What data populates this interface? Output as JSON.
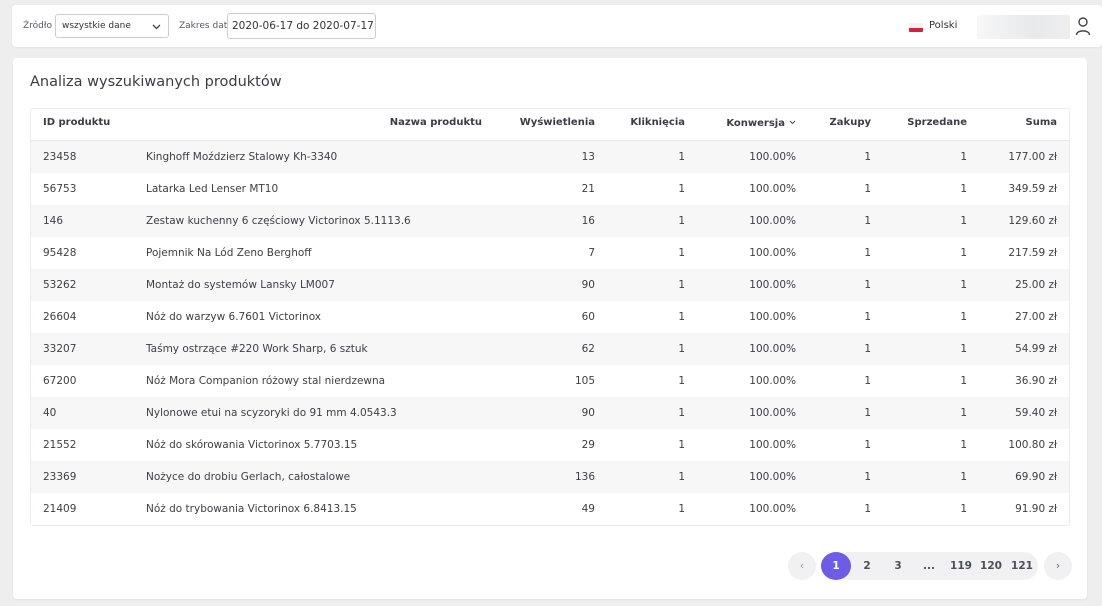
{
  "header": {
    "source_label": "Źródło",
    "source_value": "wszystkie dane",
    "date_label": "Zakres dat",
    "date_value": "2020-06-17 do 2020-07-17",
    "language": "Polski"
  },
  "main": {
    "title": "Analiza wyszukiwanych produktów",
    "columns": {
      "id": "ID produktu",
      "name": "Nazwa produktu",
      "views": "Wyświetlenia",
      "clicks": "Kliknięcia",
      "conversion": "Konwersja",
      "purchases": "Zakupy",
      "sold": "Sprzedane",
      "sum": "Suma"
    },
    "rows": [
      {
        "id": "23458",
        "name": "Kinghoff Moździerz Stalowy Kh-3340",
        "views": "13",
        "clicks": "1",
        "conversion": "100.00%",
        "purchases": "1",
        "sold": "1",
        "sum": "177.00 zł"
      },
      {
        "id": "56753",
        "name": "Latarka Led Lenser MT10",
        "views": "21",
        "clicks": "1",
        "conversion": "100.00%",
        "purchases": "1",
        "sold": "1",
        "sum": "349.59 zł"
      },
      {
        "id": "146",
        "name": "Zestaw kuchenny 6 częściowy Victorinox 5.1113.6",
        "views": "16",
        "clicks": "1",
        "conversion": "100.00%",
        "purchases": "1",
        "sold": "1",
        "sum": "129.60 zł"
      },
      {
        "id": "95428",
        "name": "Pojemnik Na Lód Zeno Berghoff",
        "views": "7",
        "clicks": "1",
        "conversion": "100.00%",
        "purchases": "1",
        "sold": "1",
        "sum": "217.59 zł"
      },
      {
        "id": "53262",
        "name": "Montaż do systemów Lansky LM007",
        "views": "90",
        "clicks": "1",
        "conversion": "100.00%",
        "purchases": "1",
        "sold": "1",
        "sum": "25.00 zł"
      },
      {
        "id": "26604",
        "name": "Nóż do warzyw 6.7601 Victorinox",
        "views": "60",
        "clicks": "1",
        "conversion": "100.00%",
        "purchases": "1",
        "sold": "1",
        "sum": "27.00 zł"
      },
      {
        "id": "33207",
        "name": "Taśmy ostrzące #220 Work Sharp, 6 sztuk",
        "views": "62",
        "clicks": "1",
        "conversion": "100.00%",
        "purchases": "1",
        "sold": "1",
        "sum": "54.99 zł"
      },
      {
        "id": "67200",
        "name": "Nóż Mora Companion różowy stal nierdzewna",
        "views": "105",
        "clicks": "1",
        "conversion": "100.00%",
        "purchases": "1",
        "sold": "1",
        "sum": "36.90 zł"
      },
      {
        "id": "40",
        "name": "Nylonowe etui na scyzoryki do 91 mm 4.0543.3",
        "views": "90",
        "clicks": "1",
        "conversion": "100.00%",
        "purchases": "1",
        "sold": "1",
        "sum": "59.40 zł"
      },
      {
        "id": "21552",
        "name": "Nóż do skórowania Victorinox 5.7703.15",
        "views": "29",
        "clicks": "1",
        "conversion": "100.00%",
        "purchases": "1",
        "sold": "1",
        "sum": "100.80 zł"
      },
      {
        "id": "23369",
        "name": "Nożyce do drobiu Gerlach, całostalowe",
        "views": "136",
        "clicks": "1",
        "conversion": "100.00%",
        "purchases": "1",
        "sold": "1",
        "sum": "69.90 zł"
      },
      {
        "id": "21409",
        "name": "Nóż do trybowania Victorinox 6.8413.15",
        "views": "49",
        "clicks": "1",
        "conversion": "100.00%",
        "purchases": "1",
        "sold": "1",
        "sum": "91.90 zł"
      }
    ]
  },
  "pagination": {
    "prev": "‹",
    "next": "›",
    "current": "1",
    "pages": [
      "2",
      "3",
      "...",
      "119",
      "120",
      "121"
    ]
  },
  "colors": {
    "accent": "#6e5ce6",
    "flag_red": "#d4213d"
  }
}
